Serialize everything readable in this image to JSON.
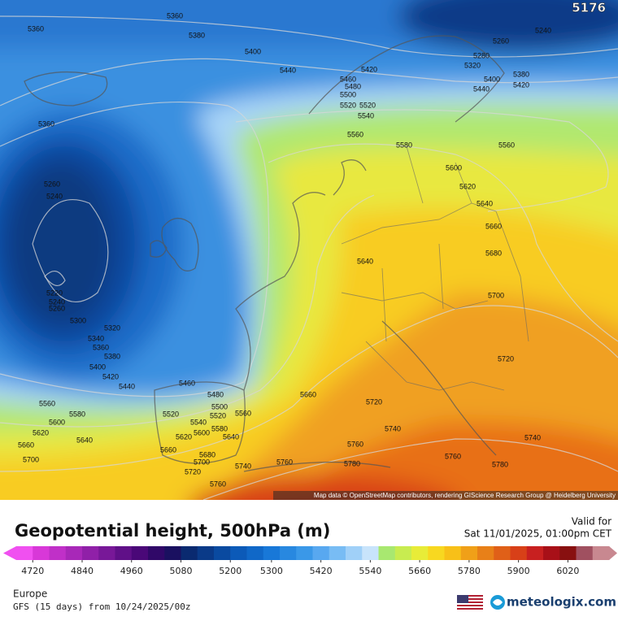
{
  "map": {
    "max_label": "5176",
    "attribution": "Map data © OpenStreetMap contributors, rendering GIScience Research Group @ Heidelberg University",
    "contour_labels": [
      5360,
      5360,
      5380,
      5400,
      5440,
      5420,
      5460,
      5480,
      5500,
      5520,
      5520,
      5540,
      5560,
      5580,
      5560,
      5360,
      5260,
      5240,
      5220,
      5240,
      5260,
      5300,
      5320,
      5340,
      5360,
      5380,
      5400,
      5420,
      5440,
      5460,
      5480,
      5500,
      5520,
      5520,
      5540,
      5580,
      5600,
      5620,
      5640,
      5560,
      5560,
      5580,
      5600,
      5620,
      5640,
      5660,
      5700,
      5660,
      5680,
      5700,
      5720,
      5740,
      5760,
      5760,
      5660,
      5640,
      5600,
      5620,
      5640,
      5660,
      5680,
      5700,
      5720,
      5720,
      5740,
      5760,
      5780,
      5760,
      5780,
      5740,
      5260,
      5240,
      5280,
      5320,
      5400,
      5440,
      5420,
      5380
    ]
  },
  "legend": {
    "title": "Geopotential height, 500hPa (m)",
    "valid_label": "Valid for",
    "valid_time": "Sat 11/01/2025, 01:00pm CET",
    "lim": [
      4680,
      6120
    ],
    "ticks": [
      4720,
      4840,
      4960,
      5080,
      5200,
      5300,
      5420,
      5540,
      5660,
      5780,
      5900,
      6020
    ],
    "tick_positions_note_free": true,
    "colors": [
      "#f050f0",
      "#d838d8",
      "#c030c8",
      "#a828b8",
      "#9020a8",
      "#781898",
      "#601088",
      "#4a0878",
      "#300868",
      "#1a1060",
      "#0a2a70",
      "#0a3a88",
      "#0a4aa0",
      "#0c5ab8",
      "#1068c8",
      "#1878d8",
      "#2888e0",
      "#3a98e8",
      "#58a8f0",
      "#78bcf4",
      "#a0d0f8",
      "#c8e4fb",
      "#a8e870",
      "#c8ec50",
      "#e8ec38",
      "#f8d820",
      "#f8c018",
      "#f0a018",
      "#e88018",
      "#e06018",
      "#d84018",
      "#c82020",
      "#a81018",
      "#881010",
      "#a05060",
      "#c88890"
    ]
  },
  "footer": {
    "region": "Europe",
    "model": "GFS (15 days) from 10/24/2025/00z",
    "brand": "meteologix.com"
  }
}
